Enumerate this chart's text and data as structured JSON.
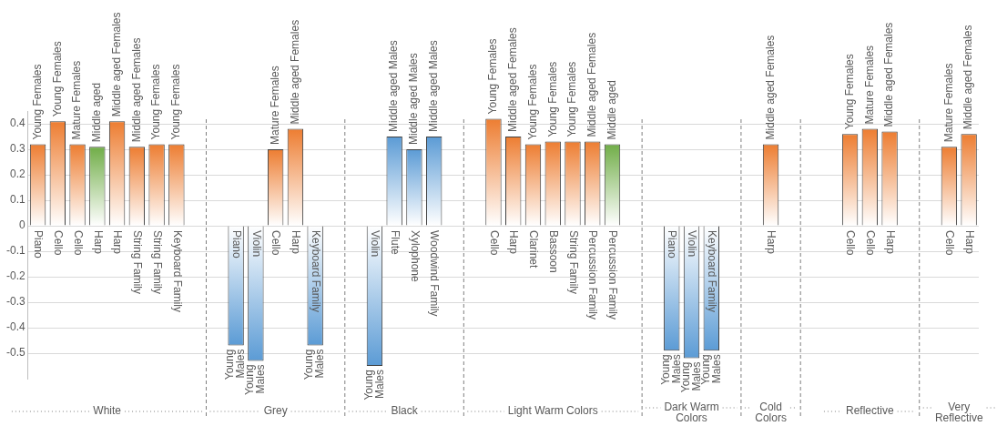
{
  "chart_data": {
    "type": "bar",
    "categories": [
      "Piano",
      "Cello",
      "Cello",
      "Harp",
      "Harp",
      "String Family",
      "String Family",
      "Keyboard Family",
      null,
      null,
      "Piano",
      "Violin",
      "Cello",
      "Harp",
      "Keyboard Family",
      null,
      null,
      "Violin",
      "Flute",
      "Xylophone",
      "Woodwind Family",
      null,
      null,
      "Cello",
      "Harp",
      "Clarinet",
      "Bassoon",
      "String Family",
      "Percussion Family",
      "Percussion Family",
      null,
      null,
      "Piano",
      "Violin",
      "Keyboard Family",
      null,
      null,
      "Harp",
      null,
      null,
      null,
      "Cello",
      "Cello",
      "Harp",
      null,
      null,
      "Cello",
      "Harp"
    ],
    "values": [
      0.32,
      0.41,
      0.32,
      0.31,
      0.41,
      0.31,
      0.32,
      0.32,
      null,
      null,
      -0.47,
      -0.53,
      0.3,
      0.38,
      -0.47,
      null,
      null,
      -0.55,
      0.35,
      0.3,
      0.35,
      null,
      null,
      0.42,
      0.35,
      0.32,
      0.33,
      0.33,
      0.33,
      0.32,
      null,
      null,
      -0.49,
      -0.52,
      -0.49,
      null,
      null,
      0.32,
      null,
      null,
      null,
      0.36,
      0.38,
      0.37,
      null,
      null,
      0.31,
      0.36
    ],
    "colors": [
      "#ed7d31",
      "#ed7d31",
      "#ed7d31",
      "#70ad47",
      "#ed7d31",
      "#ed7d31",
      "#ed7d31",
      "#ed7d31",
      null,
      null,
      "#5b9bd5",
      "#5b9bd5",
      "#ed7d31",
      "#ed7d31",
      "#5b9bd5",
      null,
      null,
      "#5b9bd5",
      "#5b9bd5",
      "#5b9bd5",
      "#5b9bd5",
      null,
      null,
      "#ed7d31",
      "#ed7d31",
      "#ed7d31",
      "#ed7d31",
      "#ed7d31",
      "#ed7d31",
      "#70ad47",
      null,
      null,
      "#5b9bd5",
      "#5b9bd5",
      "#5b9bd5",
      null,
      null,
      "#ed7d31",
      null,
      null,
      null,
      "#ed7d31",
      "#ed7d31",
      "#ed7d31",
      null,
      null,
      "#ed7d31",
      "#ed7d31"
    ],
    "value_labels": [
      "Young Females",
      "Young Females",
      "Mature Females",
      "Middle aged",
      "Middle aged Females",
      "Middle aged Females",
      "Young Females",
      "Young Females",
      null,
      null,
      "Young Males",
      "Young Males",
      "Mature Females",
      "Middle aged Females",
      "Young Males",
      null,
      null,
      "Young Males",
      "Middle aged Males",
      "Middle aged Males",
      "Middle aged Males",
      null,
      null,
      "Young Females",
      "Middle aged Females",
      "Young Females",
      "Young Females",
      "Young Females",
      "Middle aged Females",
      "Middle aged",
      null,
      null,
      "Young Males",
      "Young Males",
      "Young Males",
      null,
      null,
      "Middle aged Females",
      null,
      null,
      null,
      "Young Females",
      "Mature Females",
      "Middle aged Females",
      null,
      null,
      "Mature Females",
      "Middle aged Females"
    ],
    "annotations": [
      "White",
      "Grey",
      "Black",
      "Light Warm Colors",
      "Dark Warm Colors",
      "Cold Colors",
      "Reflective",
      "Very Reflective"
    ],
    "ylim": [
      -0.6,
      0.45
    ],
    "yticks": [
      -0.5,
      -0.4,
      -0.3,
      -0.2,
      -0.1,
      0,
      0.1,
      0.2,
      0.3,
      0.4
    ],
    "grid": "y",
    "legend": false
  }
}
